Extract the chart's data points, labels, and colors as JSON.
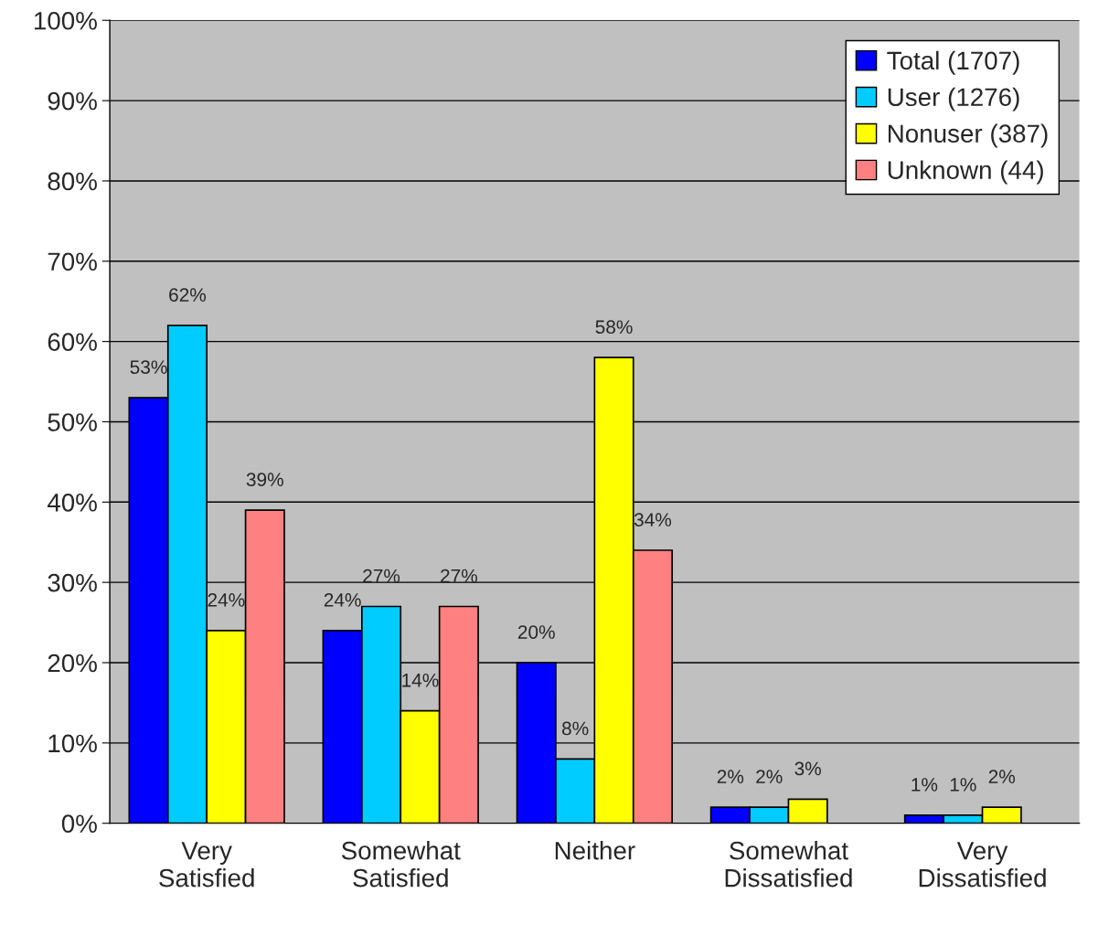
{
  "chart_data": {
    "type": "bar",
    "categories": [
      "Very\nSatisfied",
      "Somewhat\nSatisfied",
      "Neither",
      "Somewhat\nDissatisfied",
      "Very\nDissatisfied"
    ],
    "series": [
      {
        "name": "Total (1707)",
        "color": "#0000ff",
        "values": [
          53,
          24,
          20,
          2,
          1
        ],
        "value_labels": [
          "53%",
          "24%",
          "20%",
          "2%",
          "1%"
        ]
      },
      {
        "name": "User (1276)",
        "color": "#00ccff",
        "values": [
          62,
          27,
          8,
          2,
          1
        ],
        "value_labels": [
          "62%",
          "27%",
          "8%",
          "2%",
          "1%"
        ]
      },
      {
        "name": "Nonuser (387)",
        "color": "#ffff00",
        "values": [
          24,
          14,
          58,
          3,
          2
        ],
        "value_labels": [
          "24%",
          "14%",
          "58%",
          "3%",
          "2%"
        ]
      },
      {
        "name": "Unknown (44)",
        "color": "#ff8080",
        "values": [
          39,
          27,
          34,
          null,
          null
        ],
        "value_labels": [
          "39%",
          "27%",
          "34%",
          null,
          null
        ]
      }
    ],
    "ylim": [
      0,
      100
    ],
    "yticks": [
      {
        "value": 0,
        "label": "0%"
      },
      {
        "value": 10,
        "label": "10%"
      },
      {
        "value": 20,
        "label": "20%"
      },
      {
        "value": 30,
        "label": "30%"
      },
      {
        "value": 40,
        "label": "40%"
      },
      {
        "value": 50,
        "label": "50%"
      },
      {
        "value": 60,
        "label": "60%"
      },
      {
        "value": 70,
        "label": "70%"
      },
      {
        "value": 80,
        "label": "80%"
      },
      {
        "value": 90,
        "label": "90%"
      },
      {
        "value": 100,
        "label": "100%"
      }
    ],
    "grid": "y",
    "legend": "top right"
  }
}
